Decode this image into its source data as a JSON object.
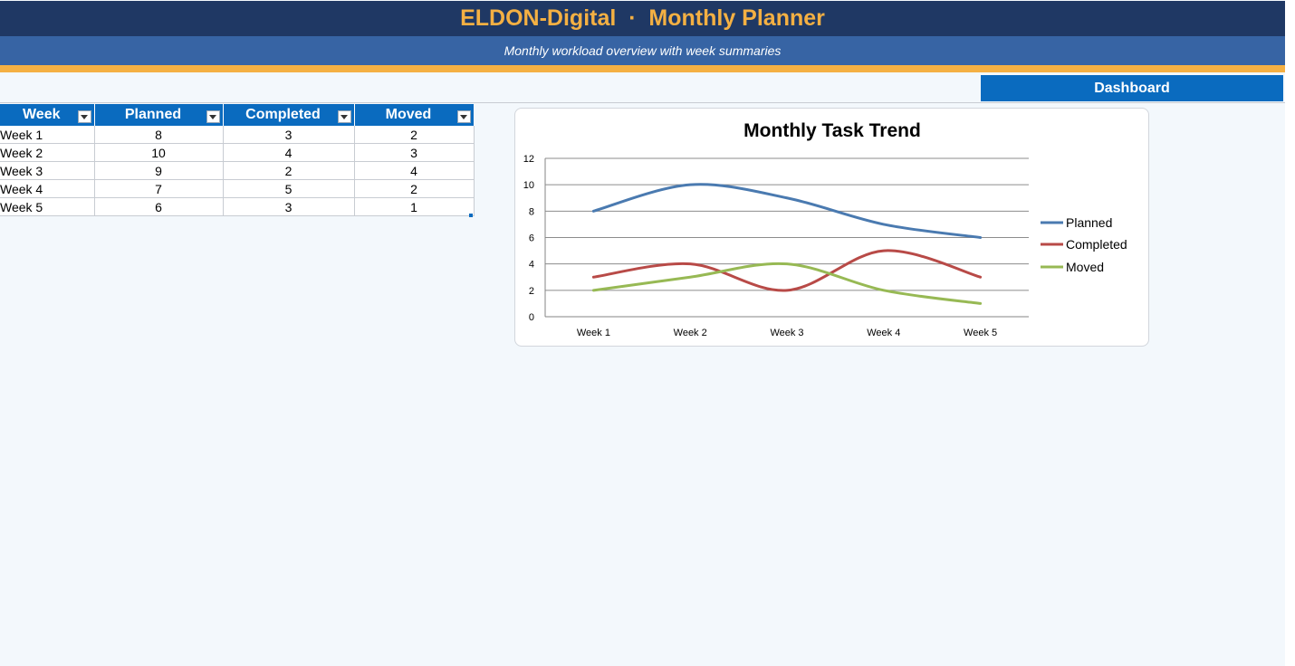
{
  "header": {
    "title": "ELDON-Digital  ·  Monthly Planner",
    "subtitle": "Monthly workload overview with week summaries"
  },
  "toolbar": {
    "dashboard_label": "Dashboard"
  },
  "table": {
    "columns": [
      "Week",
      "Planned",
      "Completed",
      "Moved"
    ],
    "rows": [
      [
        "Week 1",
        "8",
        "3",
        "2"
      ],
      [
        "Week 2",
        "10",
        "4",
        "3"
      ],
      [
        "Week 3",
        "9",
        "2",
        "4"
      ],
      [
        "Week 4",
        "7",
        "5",
        "2"
      ],
      [
        "Week 5",
        "6",
        "3",
        "1"
      ]
    ]
  },
  "colors": {
    "title_band": "#1f3864",
    "subtitle_band": "#3764a4",
    "accent": "#f4b043",
    "table_header": "#0a6bbf"
  },
  "chart_data": {
    "type": "line",
    "title": "Monthly Task Trend",
    "categories": [
      "Week 1",
      "Week 2",
      "Week 3",
      "Week 4",
      "Week 5"
    ],
    "series": [
      {
        "name": "Planned",
        "values": [
          8,
          10,
          9,
          7,
          6
        ],
        "color": "#4a7ab0"
      },
      {
        "name": "Completed",
        "values": [
          3,
          4,
          2,
          5,
          3
        ],
        "color": "#b84a47"
      },
      {
        "name": "Moved",
        "values": [
          2,
          3,
          4,
          2,
          1
        ],
        "color": "#97b954"
      }
    ],
    "ylim": [
      0,
      12
    ],
    "yticks": [
      0,
      2,
      4,
      6,
      8,
      10,
      12
    ],
    "smooth": true,
    "grid": true,
    "legend": "right"
  }
}
